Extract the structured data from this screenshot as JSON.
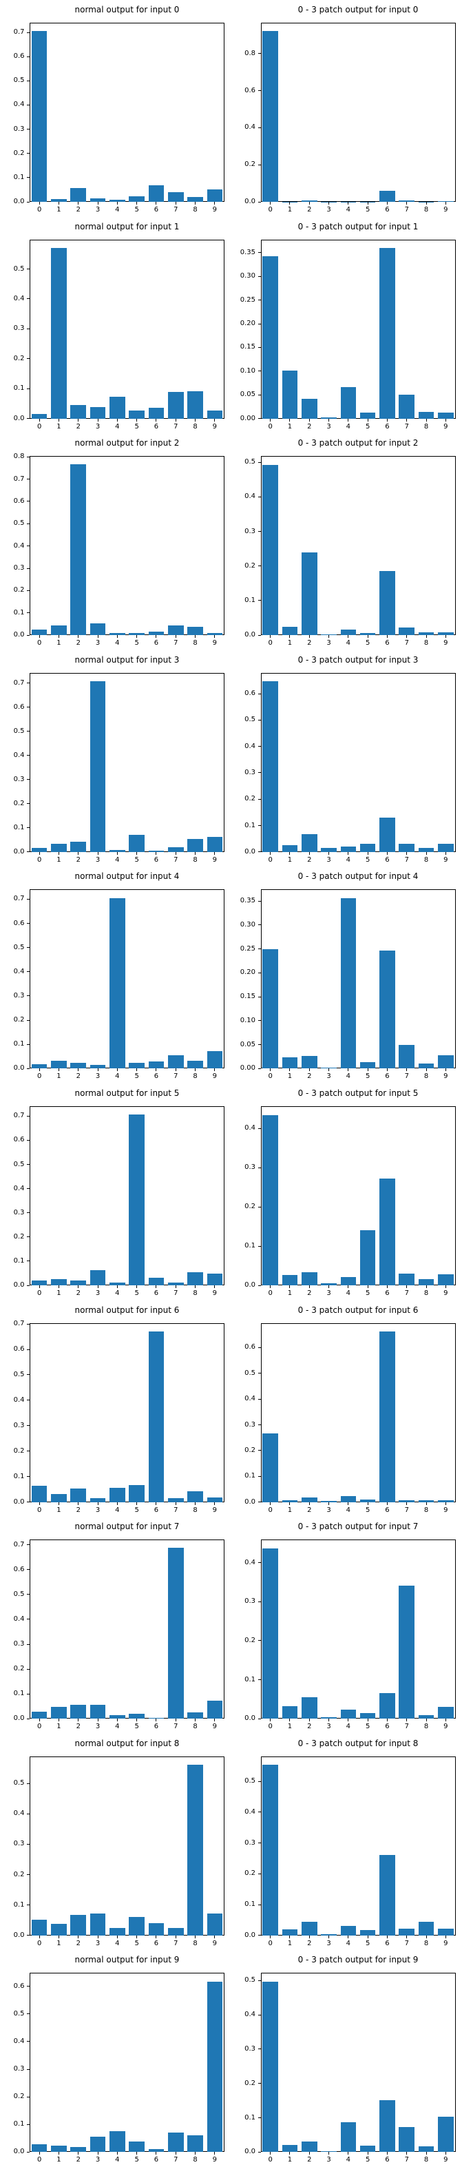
{
  "figure": {
    "background_color": "#ffffff",
    "bar_color": "#1f77b4",
    "axis_color": "#000000",
    "text_color": "#000000",
    "grid": "off",
    "legend": "none",
    "rows": 10,
    "cols": 2
  },
  "chart_data": [
    {
      "type": "bar",
      "title": "normal output for input 0",
      "categories": [
        "0",
        "1",
        "2",
        "3",
        "4",
        "5",
        "6",
        "7",
        "8",
        "9"
      ],
      "values": [
        0.705,
        0.012,
        0.058,
        0.015,
        0.009,
        0.024,
        0.067,
        0.041,
        0.021,
        0.05
      ],
      "yticks": [
        "0.0",
        "0.1",
        "0.2",
        "0.3",
        "0.4",
        "0.5",
        "0.6",
        "0.7"
      ],
      "ylim": [
        0,
        0.74
      ],
      "xlabel": "",
      "ylabel": ""
    },
    {
      "type": "bar",
      "title": "0 - 3 patch output for input 0",
      "categories": [
        "0",
        "1",
        "2",
        "3",
        "4",
        "5",
        "6",
        "7",
        "8",
        "9"
      ],
      "values": [
        0.92,
        0.001,
        0.008,
        0.001,
        0.001,
        0.001,
        0.06,
        0.008,
        0.001,
        0.004
      ],
      "yticks": [
        "0.0",
        "0.2",
        "0.4",
        "0.6",
        "0.8"
      ],
      "ylim": [
        0,
        0.966
      ],
      "xlabel": "",
      "ylabel": ""
    },
    {
      "type": "bar",
      "title": "normal output for input 1",
      "categories": [
        "0",
        "1",
        "2",
        "3",
        "4",
        "5",
        "6",
        "7",
        "8",
        "9"
      ],
      "values": [
        0.016,
        0.57,
        0.046,
        0.039,
        0.073,
        0.026,
        0.037,
        0.088,
        0.092,
        0.026
      ],
      "yticks": [
        "0.0",
        "0.1",
        "0.2",
        "0.3",
        "0.4",
        "0.5"
      ],
      "ylim": [
        0,
        0.599
      ],
      "xlabel": "",
      "ylabel": ""
    },
    {
      "type": "bar",
      "title": "0 - 3 patch output for input 1",
      "categories": [
        "0",
        "1",
        "2",
        "3",
        "4",
        "5",
        "6",
        "7",
        "8",
        "9"
      ],
      "values": [
        0.343,
        0.101,
        0.042,
        0.002,
        0.066,
        0.013,
        0.36,
        0.05,
        0.014,
        0.013
      ],
      "yticks": [
        "0.00",
        "0.05",
        "0.10",
        "0.15",
        "0.20",
        "0.25",
        "0.30",
        "0.35"
      ],
      "ylim": [
        0,
        0.378
      ],
      "xlabel": "",
      "ylabel": ""
    },
    {
      "type": "bar",
      "title": "normal output for input 2",
      "categories": [
        "0",
        "1",
        "2",
        "3",
        "4",
        "5",
        "6",
        "7",
        "8",
        "9"
      ],
      "values": [
        0.025,
        0.043,
        0.765,
        0.052,
        0.01,
        0.01,
        0.016,
        0.043,
        0.037,
        0.01
      ],
      "yticks": [
        "0.0",
        "0.1",
        "0.2",
        "0.3",
        "0.4",
        "0.5",
        "0.6",
        "0.7",
        "0.8"
      ],
      "ylim": [
        0,
        0.803
      ],
      "xlabel": "",
      "ylabel": ""
    },
    {
      "type": "bar",
      "title": "0 - 3 patch output for input 2",
      "categories": [
        "0",
        "1",
        "2",
        "3",
        "4",
        "5",
        "6",
        "7",
        "8",
        "9"
      ],
      "values": [
        0.493,
        0.024,
        0.24,
        0.003,
        0.016,
        0.007,
        0.186,
        0.022,
        0.009,
        0.009
      ],
      "yticks": [
        "0.0",
        "0.1",
        "0.2",
        "0.3",
        "0.4",
        "0.5"
      ],
      "ylim": [
        0,
        0.518
      ],
      "xlabel": "",
      "ylabel": ""
    },
    {
      "type": "bar",
      "title": "normal output for input 3",
      "categories": [
        "0",
        "1",
        "2",
        "3",
        "4",
        "5",
        "6",
        "7",
        "8",
        "9"
      ],
      "values": [
        0.016,
        0.033,
        0.041,
        0.708,
        0.007,
        0.072,
        0.004,
        0.019,
        0.055,
        0.061
      ],
      "yticks": [
        "0.0",
        "0.1",
        "0.2",
        "0.3",
        "0.4",
        "0.5",
        "0.6",
        "0.7"
      ],
      "ylim": [
        0,
        0.743
      ],
      "xlabel": "",
      "ylabel": ""
    },
    {
      "type": "bar",
      "title": "0 - 3 patch output for input 3",
      "categories": [
        "0",
        "1",
        "2",
        "3",
        "4",
        "5",
        "6",
        "7",
        "8",
        "9"
      ],
      "values": [
        0.647,
        0.025,
        0.068,
        0.015,
        0.02,
        0.032,
        0.13,
        0.03,
        0.015,
        0.032
      ],
      "yticks": [
        "0.0",
        "0.1",
        "0.2",
        "0.3",
        "0.4",
        "0.5",
        "0.6"
      ],
      "ylim": [
        0,
        0.679
      ],
      "xlabel": "",
      "ylabel": ""
    },
    {
      "type": "bar",
      "title": "normal output for input 4",
      "categories": [
        "0",
        "1",
        "2",
        "3",
        "4",
        "5",
        "6",
        "7",
        "8",
        "9"
      ],
      "values": [
        0.019,
        0.033,
        0.025,
        0.016,
        0.705,
        0.025,
        0.03,
        0.056,
        0.033,
        0.072
      ],
      "yticks": [
        "0.0",
        "0.1",
        "0.2",
        "0.3",
        "0.4",
        "0.5",
        "0.6",
        "0.7"
      ],
      "ylim": [
        0,
        0.74
      ],
      "xlabel": "",
      "ylabel": ""
    },
    {
      "type": "bar",
      "title": "0 - 3 patch output for input 4",
      "categories": [
        "0",
        "1",
        "2",
        "3",
        "4",
        "5",
        "6",
        "7",
        "8",
        "9"
      ],
      "values": [
        0.249,
        0.024,
        0.027,
        0.002,
        0.356,
        0.014,
        0.246,
        0.05,
        0.011,
        0.028
      ],
      "yticks": [
        "0.00",
        "0.05",
        "0.10",
        "0.15",
        "0.20",
        "0.25",
        "0.30",
        "0.35"
      ],
      "ylim": [
        0,
        0.374
      ],
      "xlabel": "",
      "ylabel": ""
    },
    {
      "type": "bar",
      "title": "normal output for input 5",
      "categories": [
        "0",
        "1",
        "2",
        "3",
        "4",
        "5",
        "6",
        "7",
        "8",
        "9"
      ],
      "values": [
        0.021,
        0.027,
        0.019,
        0.063,
        0.01,
        0.706,
        0.032,
        0.012,
        0.055,
        0.049
      ],
      "yticks": [
        "0.0",
        "0.1",
        "0.2",
        "0.3",
        "0.4",
        "0.5",
        "0.6",
        "0.7"
      ],
      "ylim": [
        0,
        0.741
      ],
      "xlabel": "",
      "ylabel": ""
    },
    {
      "type": "bar",
      "title": "0 - 3 patch output for input 5",
      "categories": [
        "0",
        "1",
        "2",
        "3",
        "4",
        "5",
        "6",
        "7",
        "8",
        "9"
      ],
      "values": [
        0.435,
        0.026,
        0.034,
        0.005,
        0.021,
        0.14,
        0.273,
        0.03,
        0.016,
        0.028
      ],
      "yticks": [
        "0.0",
        "0.1",
        "0.2",
        "0.3",
        "0.4"
      ],
      "ylim": [
        0,
        0.457
      ],
      "xlabel": "",
      "ylabel": ""
    },
    {
      "type": "bar",
      "title": "normal output for input 6",
      "categories": [
        "0",
        "1",
        "2",
        "3",
        "4",
        "5",
        "6",
        "7",
        "8",
        "9"
      ],
      "values": [
        0.063,
        0.031,
        0.052,
        0.014,
        0.055,
        0.066,
        0.67,
        0.014,
        0.041,
        0.017
      ],
      "yticks": [
        "0.0",
        "0.1",
        "0.2",
        "0.3",
        "0.4",
        "0.5",
        "0.6",
        "0.7"
      ],
      "ylim": [
        0,
        0.704
      ],
      "xlabel": "",
      "ylabel": ""
    },
    {
      "type": "bar",
      "title": "0 - 3 patch output for input 6",
      "categories": [
        "0",
        "1",
        "2",
        "3",
        "4",
        "5",
        "6",
        "7",
        "8",
        "9"
      ],
      "values": [
        0.266,
        0.008,
        0.017,
        0.004,
        0.024,
        0.009,
        0.663,
        0.006,
        0.006,
        0.006
      ],
      "yticks": [
        "0.0",
        "0.1",
        "0.2",
        "0.3",
        "0.4",
        "0.5",
        "0.6"
      ],
      "ylim": [
        0,
        0.696
      ],
      "xlabel": "",
      "ylabel": ""
    },
    {
      "type": "bar",
      "title": "normal output for input 7",
      "categories": [
        "0",
        "1",
        "2",
        "3",
        "4",
        "5",
        "6",
        "7",
        "8",
        "9"
      ],
      "values": [
        0.028,
        0.048,
        0.056,
        0.056,
        0.015,
        0.02,
        0.004,
        0.687,
        0.026,
        0.073
      ],
      "yticks": [
        "0.0",
        "0.1",
        "0.2",
        "0.3",
        "0.4",
        "0.5",
        "0.6",
        "0.7"
      ],
      "ylim": [
        0,
        0.721
      ],
      "xlabel": "",
      "ylabel": ""
    },
    {
      "type": "bar",
      "title": "0 - 3 patch output for input 7",
      "categories": [
        "0",
        "1",
        "2",
        "3",
        "4",
        "5",
        "6",
        "7",
        "8",
        "9"
      ],
      "values": [
        0.437,
        0.032,
        0.055,
        0.003,
        0.024,
        0.014,
        0.066,
        0.341,
        0.01,
        0.03
      ],
      "yticks": [
        "0.0",
        "0.1",
        "0.2",
        "0.3",
        "0.4"
      ],
      "ylim": [
        0,
        0.459
      ],
      "xlabel": "",
      "ylabel": ""
    },
    {
      "type": "bar",
      "title": "normal output for input 8",
      "categories": [
        "0",
        "1",
        "2",
        "3",
        "4",
        "5",
        "6",
        "7",
        "8",
        "9"
      ],
      "values": [
        0.051,
        0.038,
        0.067,
        0.073,
        0.024,
        0.06,
        0.041,
        0.024,
        0.561,
        0.073
      ],
      "yticks": [
        "0.0",
        "0.1",
        "0.2",
        "0.3",
        "0.4",
        "0.5"
      ],
      "ylim": [
        0,
        0.589
      ],
      "xlabel": "",
      "ylabel": ""
    },
    {
      "type": "bar",
      "title": "0 - 3 patch output for input 8",
      "categories": [
        "0",
        "1",
        "2",
        "3",
        "4",
        "5",
        "6",
        "7",
        "8",
        "9"
      ],
      "values": [
        0.553,
        0.019,
        0.045,
        0.003,
        0.03,
        0.017,
        0.26,
        0.021,
        0.045,
        0.023
      ],
      "yticks": [
        "0.0",
        "0.1",
        "0.2",
        "0.3",
        "0.4",
        "0.5"
      ],
      "ylim": [
        0,
        0.581
      ],
      "xlabel": "",
      "ylabel": ""
    },
    {
      "type": "bar",
      "title": "normal output for input 9",
      "categories": [
        "0",
        "1",
        "2",
        "3",
        "4",
        "5",
        "6",
        "7",
        "8",
        "9"
      ],
      "values": [
        0.028,
        0.023,
        0.019,
        0.056,
        0.076,
        0.038,
        0.011,
        0.071,
        0.061,
        0.617
      ],
      "yticks": [
        "0.0",
        "0.1",
        "0.2",
        "0.3",
        "0.4",
        "0.5",
        "0.6"
      ],
      "ylim": [
        0,
        0.648
      ],
      "xlabel": "",
      "ylabel": ""
    },
    {
      "type": "bar",
      "title": "0 - 3 patch output for input 9",
      "categories": [
        "0",
        "1",
        "2",
        "3",
        "4",
        "5",
        "6",
        "7",
        "8",
        "9"
      ],
      "values": [
        0.497,
        0.021,
        0.031,
        0.003,
        0.088,
        0.019,
        0.152,
        0.073,
        0.017,
        0.103
      ],
      "yticks": [
        "0.0",
        "0.1",
        "0.2",
        "0.3",
        "0.4",
        "0.5"
      ],
      "ylim": [
        0,
        0.522
      ],
      "xlabel": "",
      "ylabel": ""
    }
  ]
}
